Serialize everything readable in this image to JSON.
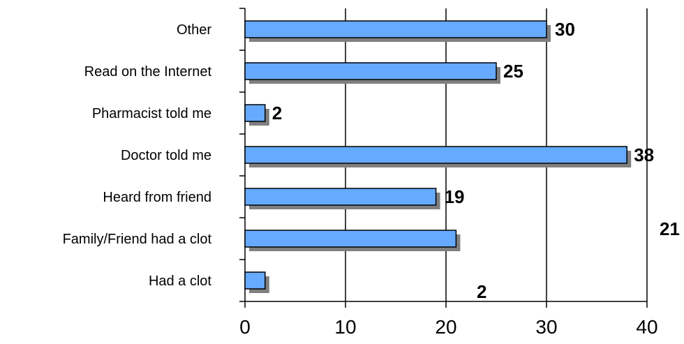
{
  "chart_data": {
    "type": "bar",
    "orientation": "horizontal",
    "categories": [
      "Other",
      "Read on the Internet",
      "Pharmacist told me",
      "Doctor told me",
      "Heard from friend",
      "Family/Friend had a clot",
      "Had a clot"
    ],
    "values": [
      30,
      25,
      2,
      38,
      19,
      21,
      2
    ],
    "data_labels": [
      "30",
      "25",
      "2",
      "38",
      "19",
      "21",
      "2"
    ],
    "xticks": [
      "0",
      "10",
      "20",
      "30",
      "40"
    ],
    "xlim": [
      0,
      40
    ],
    "grid": "vertical",
    "legend": "none",
    "colors": {
      "bar_fill": "#66aaff",
      "bar_stroke": "#000000",
      "shadow": "#808080",
      "grid": "#000000"
    }
  }
}
